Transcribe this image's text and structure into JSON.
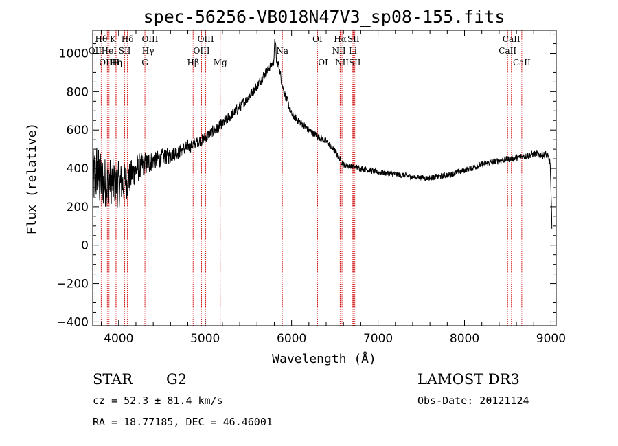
{
  "chart_data": {
    "type": "line",
    "title": "spec-56256-VB018N47V3_sp08-155.fits",
    "xlabel": "Wavelength (Å)",
    "ylabel": "Flux (relative)",
    "xlim": [
      3700,
      9060
    ],
    "ylim": [
      -420,
      1120
    ],
    "xticks": [
      4000,
      5000,
      6000,
      7000,
      8000,
      9000
    ],
    "yticks": [
      -400,
      -200,
      0,
      200,
      400,
      600,
      800,
      1000
    ],
    "x_minor_step": 200,
    "y_minor_step": 50,
    "series": [
      {
        "name": "flux",
        "color": "#000000",
        "anchors": [
          [
            3700,
            320
          ],
          [
            3750,
            380
          ],
          [
            3800,
            330
          ],
          [
            3900,
            330
          ],
          [
            4000,
            310
          ],
          [
            4100,
            340
          ],
          [
            4200,
            390
          ],
          [
            4300,
            420
          ],
          [
            4400,
            440
          ],
          [
            4600,
            470
          ],
          [
            4800,
            510
          ],
          [
            5000,
            560
          ],
          [
            5200,
            630
          ],
          [
            5400,
            720
          ],
          [
            5500,
            770
          ],
          [
            5600,
            830
          ],
          [
            5700,
            900
          ],
          [
            5800,
            960
          ],
          [
            5850,
            940
          ],
          [
            5900,
            820
          ],
          [
            6000,
            680
          ],
          [
            6100,
            640
          ],
          [
            6200,
            600
          ],
          [
            6300,
            570
          ],
          [
            6400,
            540
          ],
          [
            6500,
            490
          ],
          [
            6600,
            420
          ],
          [
            6700,
            410
          ],
          [
            6800,
            400
          ],
          [
            7000,
            380
          ],
          [
            7200,
            370
          ],
          [
            7400,
            355
          ],
          [
            7600,
            350
          ],
          [
            7800,
            365
          ],
          [
            8000,
            390
          ],
          [
            8200,
            420
          ],
          [
            8400,
            440
          ],
          [
            8600,
            455
          ],
          [
            8800,
            475
          ],
          [
            8950,
            470
          ],
          [
            8990,
            430
          ],
          [
            9010,
            100
          ]
        ],
        "noise": [
          [
            3700,
            200
          ],
          [
            4000,
            140
          ],
          [
            4200,
            90
          ],
          [
            4400,
            60
          ],
          [
            4800,
            40
          ],
          [
            5500,
            32
          ],
          [
            6000,
            25
          ],
          [
            6600,
            18
          ],
          [
            7500,
            18
          ],
          [
            8500,
            20
          ],
          [
            9010,
            25
          ]
        ]
      }
    ],
    "emission_lines": [
      {
        "wavelength": 3727,
        "label": "OII",
        "row": 1
      },
      {
        "wavelength": 3798,
        "label": "Hθ",
        "row": 0
      },
      {
        "wavelength": 3869,
        "label": "OIII",
        "row": 2
      },
      {
        "wavelength": 3889,
        "label": "HeI",
        "row": 1
      },
      {
        "wavelength": 3934,
        "label": "K",
        "row": 0
      },
      {
        "wavelength": 3970,
        "label": "Hη",
        "row": 2
      },
      {
        "wavelength": 3969,
        "label": "H",
        "row": 2
      },
      {
        "wavelength": 4070,
        "label": "SII",
        "row": 1
      },
      {
        "wavelength": 4102,
        "label": "Hδ",
        "row": 0
      },
      {
        "wavelength": 4304,
        "label": "G",
        "row": 2
      },
      {
        "wavelength": 4340,
        "label": "Hγ",
        "row": 1
      },
      {
        "wavelength": 4363,
        "label": "OIII",
        "row": 0
      },
      {
        "wavelength": 4861,
        "label": "Hβ",
        "row": 2
      },
      {
        "wavelength": 4959,
        "label": "OIII",
        "row": 1
      },
      {
        "wavelength": 5007,
        "label": "OIII",
        "row": 0
      },
      {
        "wavelength": 5175,
        "label": "Mg",
        "row": 2
      },
      {
        "wavelength": 5893,
        "label": "Na",
        "row": 1
      },
      {
        "wavelength": 6300,
        "label": "OI",
        "row": 0
      },
      {
        "wavelength": 6364,
        "label": "OI",
        "row": 2
      },
      {
        "wavelength": 6548,
        "label": "NII",
        "row": 1
      },
      {
        "wavelength": 6563,
        "label": "Hα",
        "row": 0
      },
      {
        "wavelength": 6583,
        "label": "NII",
        "row": 2
      },
      {
        "wavelength": 6708,
        "label": "Li",
        "row": 1
      },
      {
        "wavelength": 6716,
        "label": "SII",
        "row": 0
      },
      {
        "wavelength": 6731,
        "label": "SII",
        "row": 2
      },
      {
        "wavelength": 8498,
        "label": "CaII",
        "row": 1
      },
      {
        "wavelength": 8542,
        "label": "CaII",
        "row": 0
      },
      {
        "wavelength": 8662,
        "label": "CaII",
        "row": 2
      }
    ],
    "line_color": "#cc0000"
  },
  "info": {
    "class": "STAR",
    "subclass": "G2",
    "survey": "LAMOST DR3",
    "cz": "cz = 52.3 ± 81.4 km/s",
    "obs_date": "Obs-Date: 20121124",
    "coords": "RA =  18.77185, DEC =  46.46001"
  }
}
